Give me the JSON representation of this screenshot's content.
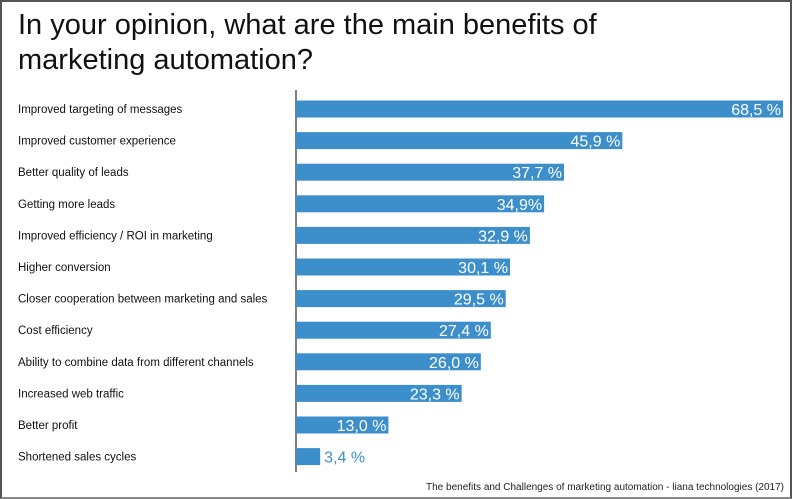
{
  "chart_data": {
    "type": "bar",
    "orientation": "horizontal",
    "title": "In your opinion, what are the main benefits of marketing automation?",
    "categories": [
      "Improved targeting of messages",
      "Improved customer experience",
      "Better quality of leads",
      "Getting more leads",
      "Improved efficiency / ROI in marketing",
      "Higher conversion",
      "Closer cooperation between marketing and sales",
      "Cost efficiency",
      "Ability to combine data from different channels",
      "Increased web traffic",
      "Better profit",
      "Shortened sales cycles"
    ],
    "values": [
      68.5,
      45.9,
      37.7,
      34.9,
      32.9,
      30.1,
      29.5,
      27.4,
      26.0,
      23.3,
      13.0,
      3.4
    ],
    "data_labels": [
      "68,5 %",
      "45,9 %",
      "37,7 %",
      "34,9%",
      "32,9 %",
      "30,1 %",
      "29,5 %",
      "27,4 %",
      "26,0 %",
      "23,3 %",
      "13,0 %",
      "3,4 %"
    ],
    "unit": "%",
    "xlim": [
      0,
      68.5
    ],
    "grid": false,
    "bar_color": "#3d8fcc",
    "source": "The benefits and Challenges of marketing automation - liana technologies (2017)"
  }
}
